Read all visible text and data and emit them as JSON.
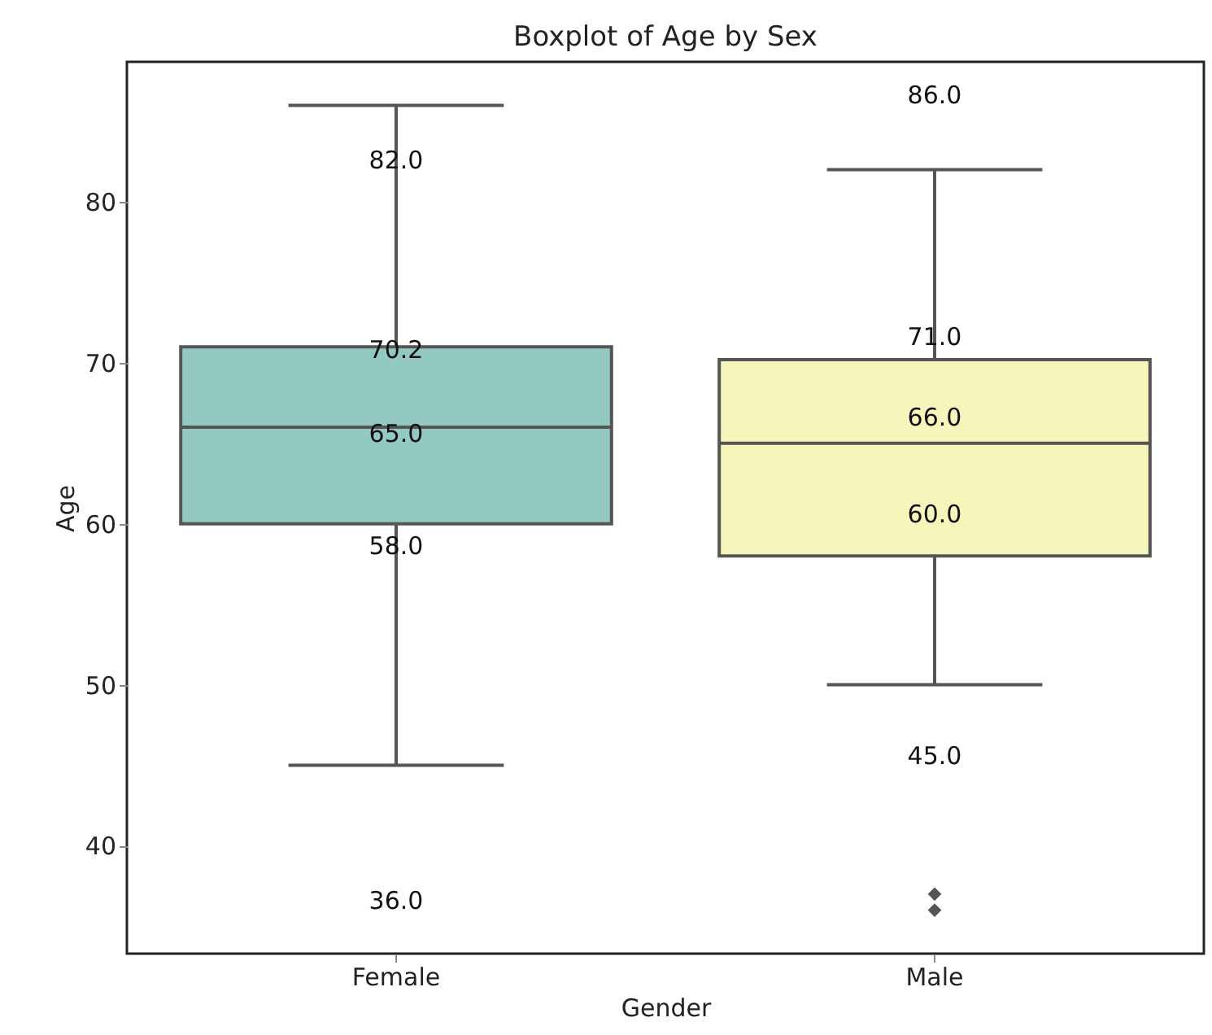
{
  "chart_data": {
    "type": "box",
    "title": "Boxplot of Age by Sex",
    "xlabel": "Gender",
    "ylabel": "Age",
    "categories": [
      "Female",
      "Male"
    ],
    "colors": [
      "#94c9c2",
      "#f6f5bb"
    ],
    "boxes": [
      {
        "low": 45,
        "q1": 60,
        "median": 66,
        "q3": 71,
        "high": 86
      },
      {
        "low": 50,
        "q1": 58,
        "median": 65,
        "q3": 70.2,
        "high": 82,
        "outliers": [
          37,
          36
        ]
      }
    ],
    "ylim": [
      33.3,
      88.7
    ],
    "yticks": [
      40,
      50,
      60,
      70,
      80
    ],
    "grid": false,
    "annotations": [
      "82.0",
      "70.2",
      "65.0",
      "58.0",
      "36.0",
      "86.0",
      "71.0",
      "66.0",
      "60.0",
      "45.0"
    ]
  }
}
